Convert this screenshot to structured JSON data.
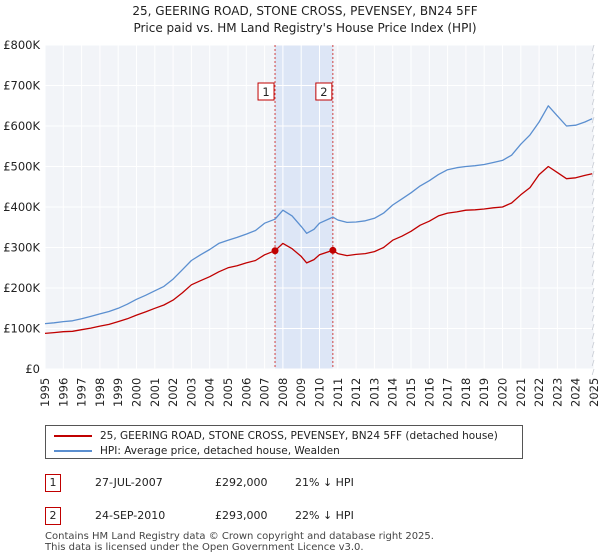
{
  "chart_data": {
    "type": "line",
    "title": "25, GEERING ROAD, STONE CROSS, PEVENSEY, BN24 5FF",
    "subtitle": "Price paid vs. HM Land Registry's House Price Index (HPI)",
    "xlabel": "",
    "ylabel": "",
    "xlim": [
      1995,
      2025
    ],
    "ylim": [
      0,
      800000
    ],
    "grid": true,
    "y_ticks": [
      0,
      100000,
      200000,
      300000,
      400000,
      500000,
      600000,
      700000,
      800000
    ],
    "y_tick_labels": [
      "£0",
      "£100K",
      "£200K",
      "£300K",
      "£400K",
      "£500K",
      "£600K",
      "£700K",
      "£800K"
    ],
    "x_ticks": [
      1995,
      1996,
      1997,
      1998,
      1999,
      2000,
      2001,
      2002,
      2003,
      2004,
      2005,
      2006,
      2007,
      2008,
      2009,
      2010,
      2011,
      2012,
      2013,
      2014,
      2015,
      2016,
      2017,
      2018,
      2019,
      2020,
      2021,
      2022,
      2023,
      2024,
      2025
    ],
    "shaded_region": [
      2007.57,
      2010.73
    ],
    "markers": [
      {
        "label": "1",
        "x": 2007.57,
        "value": 292000
      },
      {
        "label": "2",
        "x": 2010.73,
        "value": 293000
      }
    ],
    "series": [
      {
        "name": "25, GEERING ROAD, STONE CROSS, PEVENSEY, BN24 5FF (detached house)",
        "color": "#c00000",
        "x": [
          1995,
          1995.5,
          1996,
          1996.5,
          1997,
          1997.5,
          1998,
          1998.5,
          1999,
          1999.5,
          2000,
          2000.5,
          2001,
          2001.5,
          2002,
          2002.5,
          2003,
          2003.5,
          2004,
          2004.5,
          2005,
          2005.5,
          2006,
          2006.5,
          2007,
          2007.57,
          2008,
          2008.5,
          2009,
          2009.3,
          2009.7,
          2010,
          2010.73,
          2011,
          2011.5,
          2012,
          2012.5,
          2013,
          2013.5,
          2014,
          2014.5,
          2015,
          2015.5,
          2016,
          2016.5,
          2017,
          2017.5,
          2018,
          2018.5,
          2019,
          2019.5,
          2020,
          2020.5,
          2021,
          2021.5,
          2022,
          2022.5,
          2023,
          2023.5,
          2024,
          2024.5,
          2024.9
        ],
        "values": [
          88000,
          90000,
          92000,
          93000,
          97000,
          101000,
          106000,
          110000,
          117000,
          124000,
          133000,
          141000,
          150000,
          158000,
          170000,
          188000,
          208000,
          218000,
          228000,
          240000,
          250000,
          255000,
          262000,
          268000,
          282000,
          292000,
          310000,
          297000,
          278000,
          262000,
          270000,
          282000,
          293000,
          285000,
          280000,
          283000,
          285000,
          290000,
          300000,
          318000,
          328000,
          340000,
          355000,
          365000,
          378000,
          385000,
          388000,
          392000,
          393000,
          395000,
          398000,
          400000,
          410000,
          430000,
          448000,
          480000,
          500000,
          485000,
          470000,
          472000,
          478000,
          482000
        ]
      },
      {
        "name": "HPI: Average price, detached house, Wealden",
        "color": "#5b8fd0",
        "x": [
          1995,
          1995.5,
          1996,
          1996.5,
          1997,
          1997.5,
          1998,
          1998.5,
          1999,
          1999.5,
          2000,
          2000.5,
          2001,
          2001.5,
          2002,
          2002.5,
          2003,
          2003.5,
          2004,
          2004.5,
          2005,
          2005.5,
          2006,
          2006.5,
          2007,
          2007.57,
          2008,
          2008.5,
          2009,
          2009.3,
          2009.7,
          2010,
          2010.73,
          2011,
          2011.5,
          2012,
          2012.5,
          2013,
          2013.5,
          2014,
          2014.5,
          2015,
          2015.5,
          2016,
          2016.5,
          2017,
          2017.5,
          2018,
          2018.5,
          2019,
          2019.5,
          2020,
          2020.5,
          2021,
          2021.5,
          2022,
          2022.5,
          2023,
          2023.5,
          2024,
          2024.5,
          2024.9
        ],
        "values": [
          112000,
          114000,
          117000,
          119000,
          124000,
          130000,
          136000,
          142000,
          150000,
          160000,
          172000,
          182000,
          193000,
          204000,
          222000,
          245000,
          268000,
          282000,
          295000,
          310000,
          318000,
          325000,
          333000,
          342000,
          360000,
          370000,
          392000,
          378000,
          352000,
          335000,
          345000,
          360000,
          375000,
          368000,
          362000,
          363000,
          366000,
          372000,
          385000,
          405000,
          420000,
          435000,
          452000,
          465000,
          480000,
          492000,
          497000,
          500000,
          502000,
          505000,
          510000,
          515000,
          528000,
          555000,
          578000,
          610000,
          650000,
          625000,
          600000,
          602000,
          610000,
          618000
        ]
      }
    ]
  },
  "legend": [
    {
      "label": "25, GEERING ROAD, STONE CROSS, PEVENSEY, BN24 5FF (detached house)",
      "color": "#c00000"
    },
    {
      "label": "HPI: Average price, detached house, Wealden",
      "color": "#5b8fd0"
    }
  ],
  "transactions": [
    {
      "num": "1",
      "date": "27-JUL-2007",
      "price": "£292,000",
      "hpi": "21% ↓ HPI"
    },
    {
      "num": "2",
      "date": "24-SEP-2010",
      "price": "£293,000",
      "hpi": "22% ↓ HPI"
    }
  ],
  "footer": {
    "line1": "Contains HM Land Registry data © Crown copyright and database right 2025.",
    "line2": "This data is licensed under the Open Government Licence v3.0."
  }
}
